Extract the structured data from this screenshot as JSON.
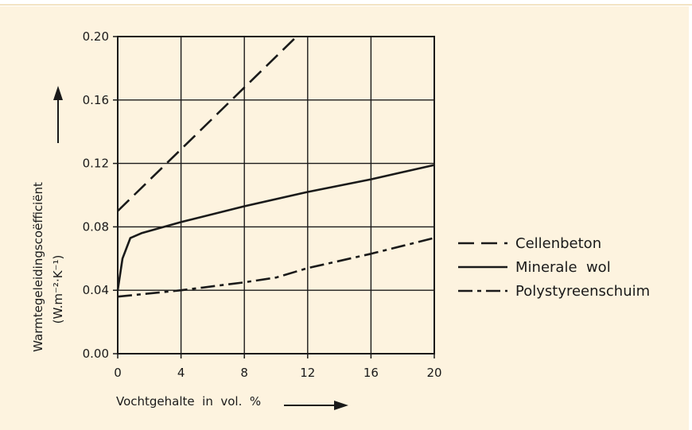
{
  "chart_data": {
    "type": "line",
    "xlabel": "Vochtgehalte  in  vol.  %",
    "ylabel_line1": "Warmtegeleidingscoëfficiënt",
    "ylabel_line2": "(W.m⁻²·K⁻¹)",
    "xlim": [
      0,
      20
    ],
    "ylim": [
      0,
      0.2
    ],
    "x_ticks": [
      0,
      4,
      8,
      12,
      16,
      20
    ],
    "x_tick_labels": [
      "0",
      "4",
      "8",
      "12",
      "16",
      "20"
    ],
    "y_ticks": [
      0,
      0.04,
      0.08,
      0.12,
      0.16,
      0.2
    ],
    "y_tick_labels": [
      "0.00",
      "0.04",
      "0.08",
      "0.12",
      "0.16",
      "0.20"
    ],
    "grid": true,
    "legend_position": "right",
    "series": [
      {
        "name": "Cellenbeton",
        "style": "dashed",
        "x": [
          0,
          11.3
        ],
        "y": [
          0.09,
          0.2
        ]
      },
      {
        "name": "Minerale  wol",
        "style": "solid",
        "x": [
          0,
          0.3,
          0.8,
          1.5,
          4,
          8,
          12,
          16,
          20
        ],
        "y": [
          0.04,
          0.06,
          0.073,
          0.076,
          0.083,
          0.093,
          0.102,
          0.11,
          0.119
        ]
      },
      {
        "name": "Polystyreenschuim",
        "style": "dashdot",
        "x": [
          0,
          4,
          8,
          10,
          12,
          16,
          20
        ],
        "y": [
          0.036,
          0.04,
          0.045,
          0.048,
          0.054,
          0.063,
          0.073
        ]
      }
    ]
  }
}
